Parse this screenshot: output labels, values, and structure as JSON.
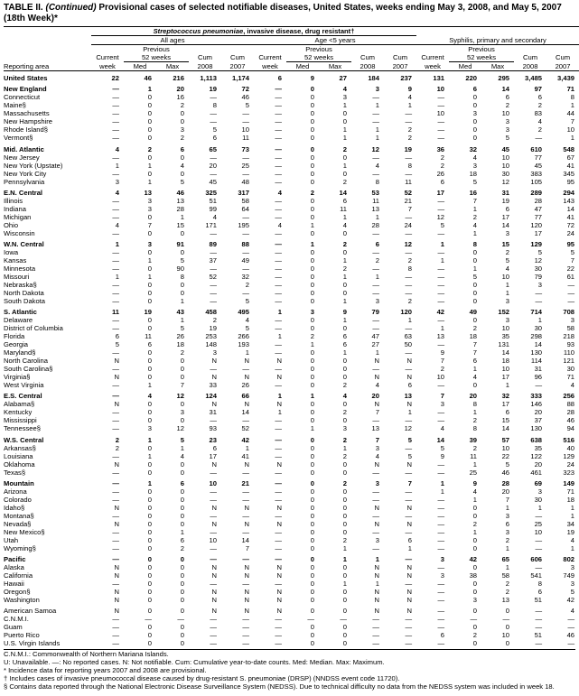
{
  "header": {
    "title_prefix": "TABLE II.",
    "title_continued": "(Continued)",
    "title_rest": "Provisional cases of selected notifiable diseases, United States, weeks ending May 3, 2008, and May 5, 2007 (18th Week)*",
    "disease_italic": "Streptococcus pneumoniae",
    "disease_rest": ", invasive disease, drug resistant†",
    "groups": [
      "All ages",
      "Age <5 years",
      "Syphilis, primary and secondary"
    ],
    "reporting_area": "Reporting area",
    "current": "Current",
    "week": "week",
    "previous": "Previous",
    "weeks52": "52 weeks",
    "med": "Med",
    "max": "Max",
    "cum": "Cum",
    "year_current": "2008",
    "year_previous": "2007"
  },
  "table": {
    "sections": [
      [
        [
          "United States",
          22,
          46,
          216,
          "1,113",
          "1,174",
          6,
          9,
          27,
          184,
          237,
          131,
          220,
          295,
          "3,485",
          "3,439"
        ]
      ],
      [
        [
          "New England",
          "—",
          1,
          20,
          19,
          72,
          "—",
          0,
          4,
          3,
          9,
          10,
          6,
          14,
          97,
          71
        ],
        [
          "Connecticut",
          "—",
          0,
          16,
          "—",
          46,
          "—",
          0,
          3,
          "—",
          4,
          "—",
          0,
          6,
          6,
          8
        ],
        [
          "Maine§",
          "—",
          0,
          2,
          8,
          5,
          "—",
          0,
          1,
          1,
          1,
          "—",
          0,
          2,
          2,
          1
        ],
        [
          "Massachusetts",
          "—",
          0,
          0,
          "—",
          "—",
          "—",
          0,
          0,
          "—",
          "—",
          10,
          3,
          10,
          83,
          44
        ],
        [
          "New Hampshire",
          "—",
          0,
          0,
          "—",
          "—",
          "—",
          0,
          0,
          "—",
          "—",
          "—",
          0,
          3,
          4,
          7
        ],
        [
          "Rhode Island§",
          "—",
          0,
          3,
          5,
          10,
          "—",
          0,
          1,
          1,
          2,
          "—",
          0,
          3,
          2,
          10
        ],
        [
          "Vermont§",
          "—",
          0,
          2,
          6,
          11,
          "—",
          0,
          1,
          1,
          2,
          "—",
          0,
          5,
          "—",
          1
        ]
      ],
      [
        [
          "Mid. Atlantic",
          4,
          2,
          6,
          65,
          73,
          "—",
          0,
          2,
          12,
          19,
          36,
          32,
          45,
          610,
          548
        ],
        [
          "New Jersey",
          "—",
          0,
          0,
          "—",
          "—",
          "—",
          0,
          0,
          "—",
          "—",
          2,
          4,
          10,
          77,
          67
        ],
        [
          "New York (Upstate)",
          1,
          1,
          4,
          20,
          25,
          "—",
          0,
          1,
          4,
          8,
          2,
          3,
          10,
          45,
          41
        ],
        [
          "New York City",
          "—",
          0,
          0,
          "—",
          "—",
          "—",
          0,
          0,
          "—",
          "—",
          26,
          18,
          30,
          383,
          345
        ],
        [
          "Pennsylvania",
          3,
          1,
          5,
          45,
          48,
          "—",
          0,
          2,
          8,
          11,
          6,
          5,
          12,
          105,
          95
        ]
      ],
      [
        [
          "E.N. Central",
          4,
          13,
          46,
          325,
          317,
          4,
          2,
          14,
          53,
          52,
          17,
          16,
          31,
          289,
          294
        ],
        [
          "Illinois",
          "—",
          3,
          13,
          51,
          58,
          "—",
          0,
          6,
          11,
          21,
          "—",
          7,
          19,
          28,
          143
        ],
        [
          "Indiana",
          "—",
          3,
          28,
          99,
          64,
          "—",
          0,
          11,
          13,
          7,
          "—",
          1,
          6,
          47,
          14
        ],
        [
          "Michigan",
          "—",
          0,
          1,
          4,
          "—",
          "—",
          0,
          1,
          1,
          "—",
          12,
          2,
          17,
          77,
          41
        ],
        [
          "Ohio",
          4,
          7,
          15,
          171,
          195,
          4,
          1,
          4,
          28,
          24,
          5,
          4,
          14,
          120,
          72
        ],
        [
          "Wisconsin",
          "—",
          0,
          0,
          "—",
          "—",
          "—",
          0,
          0,
          "—",
          "—",
          "—",
          1,
          3,
          17,
          24
        ]
      ],
      [
        [
          "W.N. Central",
          1,
          3,
          91,
          89,
          88,
          "—",
          1,
          2,
          6,
          12,
          1,
          8,
          15,
          129,
          95
        ],
        [
          "Iowa",
          "—",
          0,
          0,
          "—",
          "—",
          "—",
          0,
          0,
          "—",
          "—",
          "—",
          0,
          2,
          5,
          5
        ],
        [
          "Kansas",
          "—",
          1,
          5,
          37,
          49,
          "—",
          0,
          1,
          2,
          2,
          1,
          0,
          5,
          12,
          7
        ],
        [
          "Minnesota",
          "—",
          0,
          90,
          "—",
          "—",
          "—",
          0,
          2,
          "—",
          8,
          "—",
          1,
          4,
          30,
          22
        ],
        [
          "Missouri",
          1,
          1,
          8,
          52,
          32,
          "—",
          0,
          1,
          1,
          "—",
          "—",
          5,
          10,
          79,
          61
        ],
        [
          "Nebraska§",
          "—",
          0,
          0,
          "—",
          2,
          "—",
          0,
          0,
          "—",
          "—",
          "—",
          0,
          1,
          3,
          "—"
        ],
        [
          "North Dakota",
          "—",
          0,
          0,
          "—",
          "—",
          "—",
          0,
          0,
          "—",
          "—",
          "—",
          0,
          1,
          "—",
          "—"
        ],
        [
          "South Dakota",
          "—",
          0,
          1,
          "—",
          5,
          "—",
          0,
          1,
          3,
          2,
          "—",
          0,
          3,
          "—",
          "—"
        ]
      ],
      [
        [
          "S. Atlantic",
          11,
          19,
          43,
          458,
          495,
          1,
          3,
          9,
          79,
          120,
          42,
          49,
          152,
          714,
          708
        ],
        [
          "Delaware",
          "—",
          0,
          1,
          2,
          4,
          "—",
          0,
          1,
          "—",
          1,
          "—",
          0,
          3,
          1,
          3
        ],
        [
          "District of Columbia",
          "—",
          0,
          5,
          19,
          5,
          "—",
          0,
          0,
          "—",
          "—",
          1,
          2,
          10,
          30,
          58
        ],
        [
          "Florida",
          6,
          11,
          26,
          253,
          266,
          1,
          2,
          6,
          47,
          63,
          13,
          18,
          35,
          298,
          218
        ],
        [
          "Georgia",
          5,
          6,
          18,
          148,
          193,
          "—",
          1,
          6,
          27,
          50,
          "—",
          7,
          131,
          14,
          93
        ],
        [
          "Maryland§",
          "—",
          0,
          2,
          3,
          1,
          "—",
          0,
          1,
          1,
          "—",
          9,
          7,
          14,
          130,
          110
        ],
        [
          "North Carolina",
          "N",
          0,
          0,
          "N",
          "N",
          "N",
          0,
          0,
          "N",
          "N",
          7,
          6,
          18,
          114,
          121
        ],
        [
          "South Carolina§",
          "—",
          0,
          0,
          "—",
          "—",
          "—",
          0,
          0,
          "—",
          "—",
          2,
          1,
          10,
          31,
          30
        ],
        [
          "Virginia§",
          "N",
          0,
          0,
          "N",
          "N",
          "N",
          0,
          0,
          "N",
          "N",
          10,
          4,
          17,
          96,
          71
        ],
        [
          "West Virginia",
          "—",
          1,
          7,
          33,
          26,
          "—",
          0,
          2,
          4,
          6,
          "—",
          0,
          1,
          "—",
          4
        ]
      ],
      [
        [
          "E.S. Central",
          "—",
          4,
          12,
          124,
          66,
          1,
          1,
          4,
          20,
          13,
          7,
          20,
          32,
          333,
          256
        ],
        [
          "Alabama§",
          "N",
          0,
          0,
          "N",
          "N",
          "N",
          0,
          0,
          "N",
          "N",
          3,
          8,
          17,
          146,
          88
        ],
        [
          "Kentucky",
          "—",
          0,
          3,
          31,
          14,
          1,
          0,
          2,
          7,
          1,
          "—",
          1,
          6,
          20,
          28
        ],
        [
          "Mississippi",
          "—",
          0,
          0,
          "—",
          "—",
          "—",
          0,
          0,
          "—",
          "—",
          "—",
          2,
          15,
          37,
          46
        ],
        [
          "Tennessee§",
          "—",
          3,
          12,
          93,
          52,
          "—",
          1,
          3,
          13,
          12,
          4,
          8,
          14,
          130,
          94
        ]
      ],
      [
        [
          "W.S. Central",
          2,
          1,
          5,
          23,
          42,
          "—",
          0,
          2,
          7,
          5,
          14,
          39,
          57,
          638,
          516
        ],
        [
          "Arkansas§",
          2,
          0,
          1,
          6,
          1,
          "—",
          0,
          1,
          3,
          "—",
          5,
          2,
          10,
          35,
          40
        ],
        [
          "Louisiana",
          "—",
          1,
          4,
          17,
          41,
          "—",
          0,
          2,
          4,
          5,
          9,
          11,
          22,
          122,
          129
        ],
        [
          "Oklahoma",
          "N",
          0,
          0,
          "N",
          "N",
          "N",
          0,
          0,
          "N",
          "N",
          "—",
          1,
          5,
          20,
          24
        ],
        [
          "Texas§",
          "—",
          0,
          0,
          "—",
          "—",
          "—",
          0,
          0,
          "—",
          "—",
          "—",
          25,
          46,
          461,
          323
        ]
      ],
      [
        [
          "Mountain",
          "—",
          1,
          6,
          10,
          21,
          "—",
          0,
          2,
          3,
          7,
          1,
          9,
          28,
          69,
          149
        ],
        [
          "Arizona",
          "—",
          0,
          0,
          "—",
          "—",
          "—",
          0,
          0,
          "—",
          "—",
          1,
          4,
          20,
          3,
          71
        ],
        [
          "Colorado",
          "—",
          0,
          0,
          "—",
          "—",
          "—",
          0,
          0,
          "—",
          "—",
          "—",
          1,
          7,
          30,
          18
        ],
        [
          "Idaho§",
          "N",
          0,
          0,
          "N",
          "N",
          "N",
          0,
          0,
          "N",
          "N",
          "—",
          0,
          1,
          1,
          1
        ],
        [
          "Montana§",
          "—",
          0,
          0,
          "—",
          "—",
          "—",
          0,
          0,
          "—",
          "—",
          "—",
          0,
          3,
          "—",
          1
        ],
        [
          "Nevada§",
          "N",
          0,
          0,
          "N",
          "N",
          "N",
          0,
          0,
          "N",
          "N",
          "—",
          2,
          6,
          25,
          34
        ],
        [
          "New Mexico§",
          "—",
          0,
          1,
          "—",
          "—",
          "—",
          0,
          0,
          "—",
          "—",
          "—",
          1,
          3,
          10,
          19
        ],
        [
          "Utah",
          "—",
          0,
          6,
          10,
          14,
          "—",
          0,
          2,
          3,
          6,
          "—",
          0,
          2,
          "—",
          4
        ],
        [
          "Wyoming§",
          "—",
          0,
          2,
          "—",
          7,
          "—",
          0,
          1,
          "—",
          1,
          "—",
          0,
          1,
          "—",
          1
        ]
      ],
      [
        [
          "Pacific",
          "—",
          0,
          0,
          "—",
          "—",
          "—",
          0,
          1,
          1,
          "—",
          3,
          42,
          65,
          606,
          802
        ],
        [
          "Alaska",
          "N",
          0,
          0,
          "N",
          "N",
          "N",
          0,
          0,
          "N",
          "N",
          "—",
          0,
          1,
          "—",
          3
        ],
        [
          "California",
          "N",
          0,
          0,
          "N",
          "N",
          "N",
          0,
          0,
          "N",
          "N",
          3,
          38,
          58,
          541,
          749
        ],
        [
          "Hawaii",
          "—",
          0,
          0,
          "—",
          "—",
          "—",
          0,
          1,
          1,
          "—",
          "—",
          0,
          2,
          8,
          3
        ],
        [
          "Oregon§",
          "N",
          0,
          0,
          "N",
          "N",
          "N",
          0,
          0,
          "N",
          "N",
          "—",
          0,
          2,
          6,
          5
        ],
        [
          "Washington",
          "N",
          0,
          0,
          "N",
          "N",
          "N",
          0,
          0,
          "N",
          "N",
          "—",
          3,
          13,
          51,
          42
        ]
      ],
      [
        [
          "American Samoa",
          "N",
          0,
          0,
          "N",
          "N",
          "N",
          0,
          0,
          "N",
          "N",
          "—",
          0,
          0,
          "—",
          4
        ],
        [
          "C.N.M.I.",
          "—",
          "—",
          "—",
          "—",
          "—",
          "—",
          "—",
          "—",
          "—",
          "—",
          "—",
          "—",
          "—",
          "—",
          "—"
        ],
        [
          "Guam",
          "—",
          0,
          0,
          "—",
          "—",
          "—",
          0,
          0,
          "—",
          "—",
          "—",
          0,
          0,
          "—",
          "—"
        ],
        [
          "Puerto Rico",
          "—",
          0,
          0,
          "—",
          "—",
          "—",
          0,
          0,
          "—",
          "—",
          6,
          2,
          10,
          51,
          46
        ],
        [
          "U.S. Virgin Islands",
          "—",
          0,
          0,
          "—",
          "—",
          "—",
          0,
          0,
          "—",
          "—",
          "—",
          0,
          0,
          "—",
          "—"
        ]
      ]
    ]
  },
  "footnotes": [
    "C.N.M.I.: Commonwealth of Northern Mariana Islands.",
    "U: Unavailable.   —: No reported cases.   N: Not notifiable.   Cum: Cumulative year-to-date counts.   Med: Median.   Max: Maximum.",
    "* Incidence data for reporting years 2007 and 2008 are provisional.",
    "† Includes cases of invasive pneumococcal disease caused by drug-resistant S. pneumoniae (DRSP) (NNDSS event code 11720).",
    "§ Contains data reported through the National Electronic Disease Surveillance System (NEDSS). Due to technical difficulty no data from the NEDSS system was included in week 18."
  ]
}
